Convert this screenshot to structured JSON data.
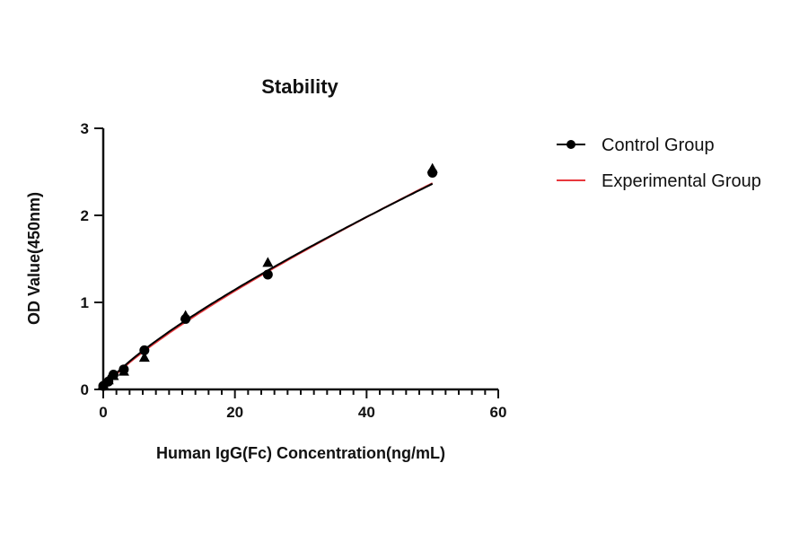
{
  "chart_data": {
    "type": "scatter",
    "title": "Stability",
    "xlabel": "Human IgG(Fc) Concentration(ng/mL)",
    "ylabel": "OD Value(450nm)",
    "xlim": [
      0,
      60
    ],
    "ylim": [
      0,
      3
    ],
    "xticks": [
      "0",
      "20",
      "40",
      "60"
    ],
    "yticks": [
      "0",
      "1",
      "2",
      "3"
    ],
    "grid": false,
    "legend_position": "right",
    "series": [
      {
        "name": "Control Group",
        "color": "#000000",
        "marker": "circle",
        "x": [
          0,
          0.78,
          1.56,
          3.125,
          6.25,
          12.5,
          25,
          50
        ],
        "y": [
          0.04,
          0.09,
          0.17,
          0.23,
          0.45,
          0.81,
          1.32,
          2.49
        ]
      },
      {
        "name": "Experimental Group",
        "color": "#e8383d",
        "marker": "triangle",
        "x": [
          0,
          0.78,
          1.56,
          3.125,
          6.25,
          12.5,
          25,
          50
        ],
        "y": [
          0.05,
          0.1,
          0.15,
          0.2,
          0.36,
          0.84,
          1.45,
          2.53
        ]
      }
    ]
  }
}
